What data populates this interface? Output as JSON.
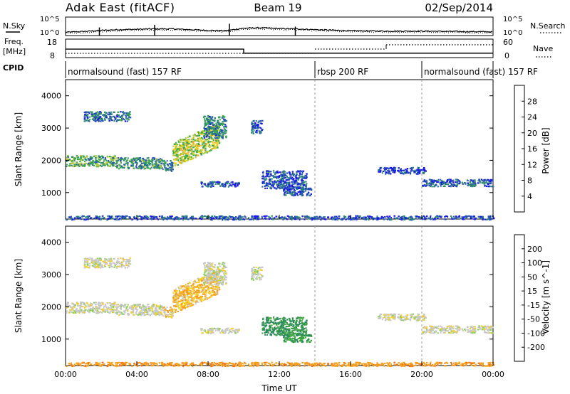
{
  "header": {
    "station": "Adak East (fitACF)",
    "beam": "Beam 19",
    "date": "02/Sep/2014"
  },
  "strips": {
    "nsky_label": "N.Sky",
    "nsearch_label": "N.Search",
    "noise_ticks_left": [
      "10^5",
      "10^0"
    ],
    "noise_ticks_right": [
      "10^5",
      "10^0"
    ],
    "freq_label_top": "Freq.",
    "freq_label_unit": "[MHz]",
    "freq_ticks": [
      "18",
      "8"
    ],
    "nave_label": "Nave",
    "nave_ticks": [
      "60",
      "0"
    ],
    "cpid_label": "CPID",
    "cpid_segments": [
      {
        "label": "normalsound (fast) 157 RF",
        "start": 0,
        "end": 14
      },
      {
        "label": "rbsp 200 RF",
        "start": 14,
        "end": 20
      },
      {
        "label": "normalsound (fast) 157 RF",
        "start": 20,
        "end": 24
      }
    ]
  },
  "axes": {
    "xlabel": "Time UT",
    "xticks": [
      "00:00",
      "04:00",
      "08:00",
      "12:00",
      "16:00",
      "20:00",
      "00:00"
    ],
    "ylabel": "Slant Range [km]",
    "yticks": [
      "1000",
      "2000",
      "3000",
      "4000"
    ]
  },
  "colorbars": {
    "power": {
      "label": "Power [dB]",
      "ticks": [
        "4",
        "8",
        "12",
        "16",
        "20",
        "24",
        "28"
      ],
      "colors": [
        "#1a1ae8",
        "#2a56b4",
        "#2f8a73",
        "#3aa84a",
        "#b6c93c",
        "#f0d21e",
        "#f5a52a",
        "#f07a1c",
        "#ea4a14",
        "#e01010"
      ]
    },
    "velocity": {
      "label": "Velocity [m s^-1]",
      "ticks": [
        "200",
        "100",
        "50",
        "15",
        "-15",
        "-50",
        "-100",
        "-200"
      ],
      "colors": [
        "#1e2ab8",
        "#2f6fb0",
        "#2e8a5c",
        "#40a840",
        "#8fd05a",
        "#c8c8c8",
        "#f5d020",
        "#f5a020",
        "#f07018",
        "#e83a12",
        "#e01010"
      ]
    }
  },
  "chart_data": {
    "type": "heatmap",
    "x_range_hours": [
      0,
      24
    ],
    "y_range_km": [
      180,
      4500
    ],
    "noise": {
      "sky_level_by_hour": [
        [
          0,
          0.9
        ],
        [
          1,
          1.1
        ],
        [
          2,
          1.4
        ],
        [
          3,
          1.6
        ],
        [
          4,
          1.7
        ],
        [
          5,
          1.8
        ],
        [
          6,
          1.8
        ],
        [
          7,
          1.6
        ],
        [
          8,
          1.4
        ],
        [
          9,
          1.3
        ],
        [
          10,
          2.0
        ],
        [
          11,
          2.1
        ],
        [
          12,
          1.9
        ],
        [
          13,
          1.8
        ],
        [
          14,
          1.6
        ],
        [
          16,
          1.3
        ],
        [
          18,
          1.2
        ],
        [
          20,
          1.2
        ],
        [
          22,
          1.1
        ],
        [
          24,
          1.0
        ]
      ]
    },
    "frequency": {
      "steps_mhz": [
        [
          0,
          12.6
        ],
        [
          10,
          12.6
        ],
        [
          10,
          10.4
        ],
        [
          14,
          10.4
        ]
      ]
    },
    "scatter_regions": [
      {
        "t0": 0.0,
        "t1": 2.8,
        "r_center": 2000,
        "r_half": 170,
        "power_db": 12,
        "velocity": 0
      },
      {
        "t0": 2.8,
        "t1": 5.4,
        "r_center": 1930,
        "r_half": 170,
        "power_db": 10,
        "velocity": 0
      },
      {
        "t0": 5.4,
        "t1": 6.0,
        "r_center": 1850,
        "r_half": 180,
        "power_db": 10,
        "velocity": -20
      },
      {
        "t0": 6.0,
        "t1": 8.6,
        "r_center": 2500,
        "r_half": 380,
        "power_db": 16,
        "velocity": -30
      },
      {
        "t0": 1.0,
        "t1": 3.6,
        "r_center": 3380,
        "r_half": 150,
        "power_db": 8,
        "velocity": 0
      },
      {
        "t0": 7.7,
        "t1": 9.0,
        "r_center": 3050,
        "r_half": 350,
        "power_db": 9,
        "velocity": 0
      },
      {
        "t0": 7.5,
        "t1": 9.7,
        "r_center": 1280,
        "r_half": 80,
        "power_db": 6,
        "velocity": 0
      },
      {
        "t0": 10.4,
        "t1": 11.0,
        "r_center": 3050,
        "r_half": 200,
        "power_db": 6,
        "velocity": 0
      },
      {
        "t0": 11.0,
        "t1": 13.5,
        "r_center": 1420,
        "r_half": 280,
        "power_db": 6,
        "velocity": 80
      },
      {
        "t0": 12.2,
        "t1": 13.8,
        "r_center": 1050,
        "r_half": 120,
        "power_db": 6,
        "velocity": 70
      },
      {
        "t0": 17.5,
        "t1": 20.2,
        "r_center": 1700,
        "r_half": 100,
        "power_db": 5,
        "velocity": 0
      },
      {
        "t0": 20.0,
        "t1": 24.0,
        "r_center": 1320,
        "r_half": 110,
        "power_db": 7,
        "velocity": 0
      },
      {
        "t0": 0.0,
        "t1": 24.0,
        "r_center": 240,
        "r_half": 60,
        "power_db": 6,
        "velocity": -60
      }
    ]
  }
}
